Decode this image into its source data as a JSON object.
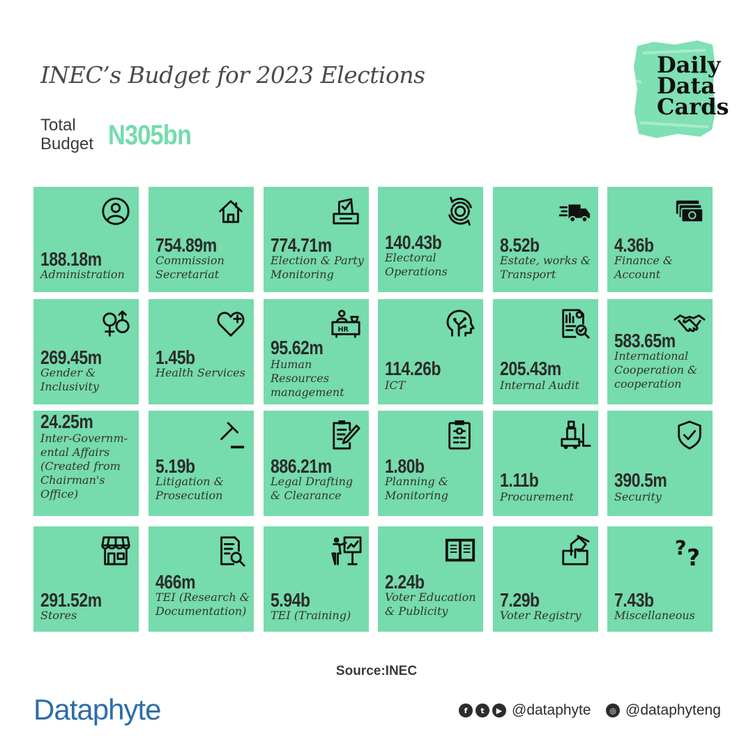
{
  "title": "INEC’s Budget for 2023 Elections",
  "total": {
    "label_line1": "Total",
    "label_line2": "Budget",
    "value": "N305bn"
  },
  "logo": {
    "line1": "Daily",
    "line2": "Data",
    "line3": "Cards"
  },
  "colors": {
    "card": "#76dbad",
    "accent": "#73dcad",
    "brand": "#2e6da8"
  },
  "cards": [
    {
      "value": "188.18m",
      "label": "Administration",
      "icon": "user-circle-icon"
    },
    {
      "value": "754.89m",
      "label": "Commission Secretariat",
      "icon": "house-icon"
    },
    {
      "value": "774.71m",
      "label": "Election & Party Monitoring",
      "icon": "ballot-box-icon"
    },
    {
      "value": "140.43b",
      "label": "Electoral Operations",
      "icon": "gear-cycle-icon"
    },
    {
      "value": "8.52b",
      "label": "Estate, works & Transport",
      "icon": "truck-icon"
    },
    {
      "value": "4.36b",
      "label": "Finance & Account",
      "icon": "money-icon"
    },
    {
      "value": "269.45m",
      "label": "Gender & Inclusivity",
      "icon": "gender-icon"
    },
    {
      "value": "1.45b",
      "label": "Health Services",
      "icon": "heart-plus-icon"
    },
    {
      "value": "95.62m",
      "label": "Human Resources management",
      "icon": "hr-desk-icon"
    },
    {
      "value": "114.26b",
      "label": "ICT",
      "icon": "tech-head-icon"
    },
    {
      "value": "205.43m",
      "label": "Internal Audit",
      "icon": "audit-report-icon"
    },
    {
      "value": "583.65m",
      "label": "International Cooperation & cooperation",
      "icon": "handshake-icon"
    },
    {
      "value": "24.25m",
      "label": "Inter-Governm- ental Affairs (Created from Chairman's Office)",
      "icon": ""
    },
    {
      "value": "5.19b",
      "label": "Litigation & Prosecution",
      "icon": "gavel-icon"
    },
    {
      "value": "886.21m",
      "label": "Legal Drafting & Clearance",
      "icon": "document-pen-icon"
    },
    {
      "value": "1.80b",
      "label": "Planning & Monitoring",
      "icon": "clipboard-icon"
    },
    {
      "value": "1.11b",
      "label": "Procurement",
      "icon": "forklift-icon"
    },
    {
      "value": "390.5m",
      "label": "Security",
      "icon": "shield-check-icon"
    },
    {
      "value": "291.52m",
      "label": "Stores",
      "icon": "store-icon"
    },
    {
      "value": "466m",
      "label": "TEI (Research & Documentation)",
      "icon": "document-search-icon"
    },
    {
      "value": "5.94b",
      "label": "TEI (Training)",
      "icon": "presenter-board-icon"
    },
    {
      "value": "2.24b",
      "label": "Voter Education & Publicity",
      "icon": "open-book-icon"
    },
    {
      "value": "7.29b",
      "label": "Voter Registry",
      "icon": "vote-hand-icon"
    },
    {
      "value": "7.43b",
      "label": "Miscellaneous",
      "icon": "question-marks-icon"
    }
  ],
  "source": "Source:INEC",
  "brand": "Dataphyte",
  "social": {
    "handle1": "@dataphyte",
    "handle2": "@dataphyteng"
  }
}
